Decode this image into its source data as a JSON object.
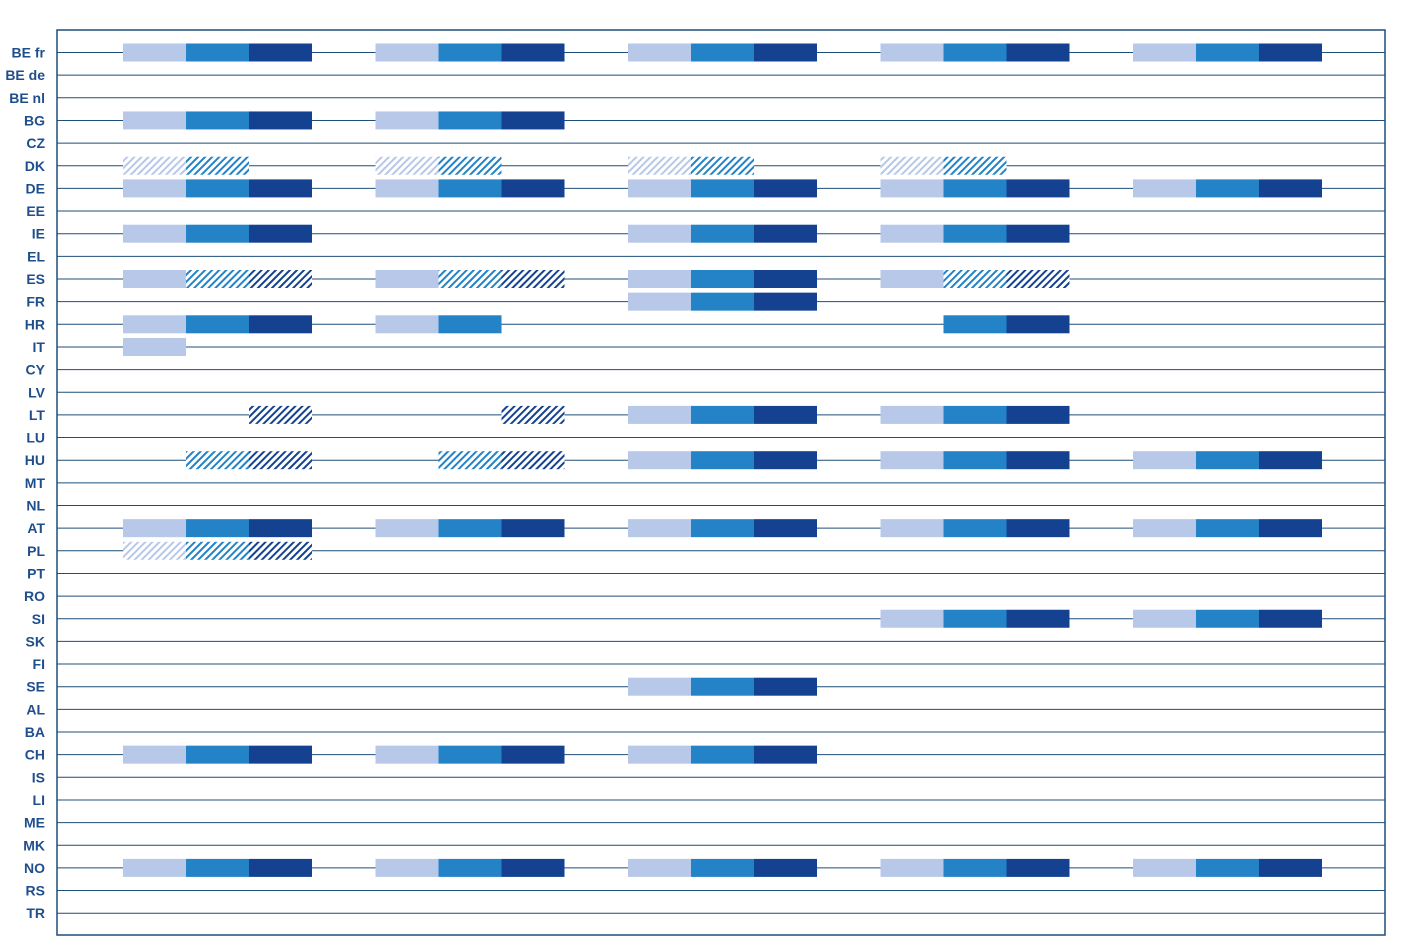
{
  "colors": {
    "light": "#b8c8e8",
    "mid": "#2383c6",
    "dark": "#144291",
    "row_line": "#1f4e79",
    "frame": "#1f4e79",
    "label": "#1f4e8c"
  },
  "chart_data": {
    "type": "table",
    "title": "",
    "countries": [
      "BE fr",
      "BE de",
      "BE nl",
      "BG",
      "CZ",
      "DK",
      "DE",
      "EE",
      "IE",
      "EL",
      "ES",
      "FR",
      "HR",
      "IT",
      "CY",
      "LV",
      "LT",
      "LU",
      "HU",
      "MT",
      "NL",
      "AT",
      "PL",
      "PT",
      "RO",
      "SI",
      "SK",
      "FI",
      "SE",
      "AL",
      "BA",
      "CH",
      "IS",
      "LI",
      "ME",
      "MK",
      "NO",
      "RS",
      "TR"
    ],
    "group_count": 5,
    "level_count": 3,
    "level_palette": [
      "light",
      "mid",
      "dark"
    ],
    "bars": [
      {
        "country": "BE fr",
        "group": 0,
        "levels": [
          "S",
          "S",
          "S"
        ]
      },
      {
        "country": "BE fr",
        "group": 1,
        "levels": [
          "S",
          "S",
          "S"
        ]
      },
      {
        "country": "BE fr",
        "group": 2,
        "levels": [
          "S",
          "S",
          "S"
        ]
      },
      {
        "country": "BE fr",
        "group": 3,
        "levels": [
          "S",
          "S",
          "S"
        ]
      },
      {
        "country": "BE fr",
        "group": 4,
        "levels": [
          "S",
          "S",
          "S"
        ]
      },
      {
        "country": "BG",
        "group": 0,
        "levels": [
          "S",
          "S",
          "S"
        ]
      },
      {
        "country": "BG",
        "group": 1,
        "levels": [
          "S",
          "S",
          "S"
        ]
      },
      {
        "country": "DK",
        "group": 0,
        "levels": [
          "H",
          "H",
          "-"
        ]
      },
      {
        "country": "DK",
        "group": 1,
        "levels": [
          "H",
          "H",
          "-"
        ]
      },
      {
        "country": "DK",
        "group": 2,
        "levels": [
          "H",
          "H",
          "-"
        ]
      },
      {
        "country": "DK",
        "group": 3,
        "levels": [
          "H",
          "H",
          "-"
        ]
      },
      {
        "country": "DE",
        "group": 0,
        "levels": [
          "S",
          "S",
          "S"
        ]
      },
      {
        "country": "DE",
        "group": 1,
        "levels": [
          "S",
          "S",
          "S"
        ]
      },
      {
        "country": "DE",
        "group": 2,
        "levels": [
          "S",
          "S",
          "S"
        ]
      },
      {
        "country": "DE",
        "group": 3,
        "levels": [
          "S",
          "S",
          "S"
        ]
      },
      {
        "country": "DE",
        "group": 4,
        "levels": [
          "S",
          "S",
          "S"
        ]
      },
      {
        "country": "IE",
        "group": 0,
        "levels": [
          "S",
          "S",
          "S"
        ]
      },
      {
        "country": "IE",
        "group": 2,
        "levels": [
          "S",
          "S",
          "S"
        ]
      },
      {
        "country": "IE",
        "group": 3,
        "levels": [
          "S",
          "S",
          "S"
        ]
      },
      {
        "country": "ES",
        "group": 0,
        "levels": [
          "S",
          "H",
          "H"
        ]
      },
      {
        "country": "ES",
        "group": 1,
        "levels": [
          "S",
          "H",
          "H"
        ]
      },
      {
        "country": "ES",
        "group": 2,
        "levels": [
          "S",
          "S",
          "S"
        ]
      },
      {
        "country": "ES",
        "group": 3,
        "levels": [
          "S",
          "H",
          "H"
        ]
      },
      {
        "country": "FR",
        "group": 2,
        "levels": [
          "S",
          "S",
          "S"
        ]
      },
      {
        "country": "HR",
        "group": 0,
        "levels": [
          "S",
          "S",
          "S"
        ]
      },
      {
        "country": "HR",
        "group": 1,
        "levels": [
          "S",
          "S",
          "-"
        ]
      },
      {
        "country": "HR",
        "group": 3,
        "levels": [
          "-",
          "S",
          "S"
        ]
      },
      {
        "country": "IT",
        "group": 0,
        "levels": [
          "S",
          "-",
          "-"
        ]
      },
      {
        "country": "LT",
        "group": 0,
        "levels": [
          "-",
          "-",
          "H"
        ]
      },
      {
        "country": "LT",
        "group": 1,
        "levels": [
          "-",
          "-",
          "H"
        ]
      },
      {
        "country": "LT",
        "group": 2,
        "levels": [
          "S",
          "S",
          "S"
        ]
      },
      {
        "country": "LT",
        "group": 3,
        "levels": [
          "S",
          "S",
          "S"
        ]
      },
      {
        "country": "HU",
        "group": 0,
        "levels": [
          "-",
          "H",
          "H"
        ]
      },
      {
        "country": "HU",
        "group": 1,
        "levels": [
          "-",
          "H",
          "H"
        ]
      },
      {
        "country": "HU",
        "group": 2,
        "levels": [
          "S",
          "S",
          "S"
        ]
      },
      {
        "country": "HU",
        "group": 3,
        "levels": [
          "S",
          "S",
          "S"
        ]
      },
      {
        "country": "HU",
        "group": 4,
        "levels": [
          "S",
          "S",
          "S"
        ]
      },
      {
        "country": "AT",
        "group": 0,
        "levels": [
          "S",
          "S",
          "S"
        ]
      },
      {
        "country": "AT",
        "group": 1,
        "levels": [
          "S",
          "S",
          "S"
        ]
      },
      {
        "country": "AT",
        "group": 2,
        "levels": [
          "S",
          "S",
          "S"
        ]
      },
      {
        "country": "AT",
        "group": 3,
        "levels": [
          "S",
          "S",
          "S"
        ]
      },
      {
        "country": "AT",
        "group": 4,
        "levels": [
          "S",
          "S",
          "S"
        ]
      },
      {
        "country": "PL",
        "group": 0,
        "levels": [
          "H",
          "H",
          "H"
        ]
      },
      {
        "country": "SI",
        "group": 3,
        "levels": [
          "S",
          "S",
          "S"
        ]
      },
      {
        "country": "SI",
        "group": 4,
        "levels": [
          "S",
          "S",
          "S"
        ]
      },
      {
        "country": "SE",
        "group": 2,
        "levels": [
          "S",
          "S",
          "S"
        ]
      },
      {
        "country": "CH",
        "group": 0,
        "levels": [
          "S",
          "S",
          "S"
        ]
      },
      {
        "country": "CH",
        "group": 1,
        "levels": [
          "S",
          "S",
          "S"
        ]
      },
      {
        "country": "CH",
        "group": 2,
        "levels": [
          "S",
          "S",
          "S"
        ]
      },
      {
        "country": "NO",
        "group": 0,
        "levels": [
          "S",
          "S",
          "S"
        ]
      },
      {
        "country": "NO",
        "group": 1,
        "levels": [
          "S",
          "S",
          "S"
        ]
      },
      {
        "country": "NO",
        "group": 2,
        "levels": [
          "S",
          "S",
          "S"
        ]
      },
      {
        "country": "NO",
        "group": 3,
        "levels": [
          "S",
          "S",
          "S"
        ]
      },
      {
        "country": "NO",
        "group": 4,
        "levels": [
          "S",
          "S",
          "S"
        ]
      }
    ]
  }
}
